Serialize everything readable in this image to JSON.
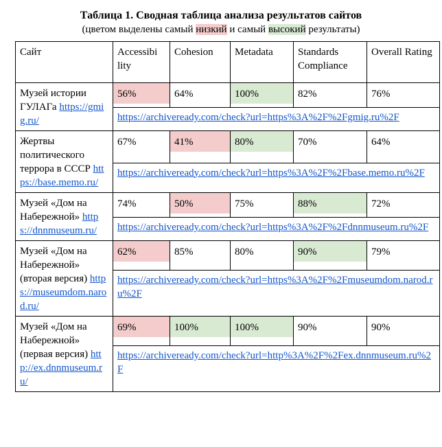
{
  "title": "Таблица 1. Сводная таблица анализа результатов сайтов",
  "subtitle": {
    "pre": "(цветом выделены самый ",
    "low_word": "низкий",
    "mid": " и самый ",
    "high_word": "высокий",
    "post": " результаты)"
  },
  "colors": {
    "low": "#f4cccc",
    "high": "#d9ead3",
    "link": "#1155cc"
  },
  "headers": [
    "Сайт",
    "Accessibi lity",
    "Cohesion",
    "Metadata",
    "Standards Compliance",
    "Overall Rating"
  ],
  "rows": [
    {
      "name": "Музей истории ГУЛАГа",
      "site_url": "https://gmig.ru/",
      "values": [
        "56%",
        "64%",
        "100%",
        "82%",
        "76%"
      ],
      "highlight": [
        "low",
        "",
        "high",
        "",
        ""
      ],
      "check_url": "https://archiveready.com/check?url=https%3A%2F%2Fgmig.ru%2F"
    },
    {
      "name": "Жертвы политического террора в СССР",
      "site_url": "https://base.memo.ru/",
      "values": [
        "67%",
        "41%",
        "80%",
        "70%",
        "64%"
      ],
      "highlight": [
        "",
        "low",
        "high",
        "",
        ""
      ],
      "check_url": "https://archiveready.com/check?url=https%3A%2F%2Fbase.memo.ru%2F"
    },
    {
      "name": "Музей «Дом на Набережной»",
      "site_url": "https://dnnmuseum.ru/",
      "values": [
        "74%",
        "50%",
        "75%",
        "88%",
        "72%"
      ],
      "highlight": [
        "",
        "low",
        "",
        "high",
        ""
      ],
      "check_url": "https://archiveready.com/check?url=https%3A%2F%2Fdnnmuseum.ru%2F"
    },
    {
      "name": "Музей «Дом на Набережной» (вторая версия)",
      "site_url": "https://museumdom.narod.ru/",
      "values": [
        "62%",
        "85%",
        "80%",
        "90%",
        "79%"
      ],
      "highlight": [
        "low",
        "",
        "",
        "high",
        ""
      ],
      "check_url": "https://archiveready.com/check?url=https%3A%2F%2Fmuseumdom.narod.ru%2F"
    },
    {
      "name": "Музей «Дом на Набережной» (первая версия)",
      "site_url": "http://ex.dnnmuseum.ru/",
      "values": [
        "69%",
        "100%",
        "100%",
        "90%",
        "90%"
      ],
      "highlight": [
        "low",
        "high",
        "high",
        "",
        ""
      ],
      "check_url": "https://archiveready.com/check?url=http%3A%2F%2Fex.dnnmuseum.ru%2F"
    }
  ]
}
